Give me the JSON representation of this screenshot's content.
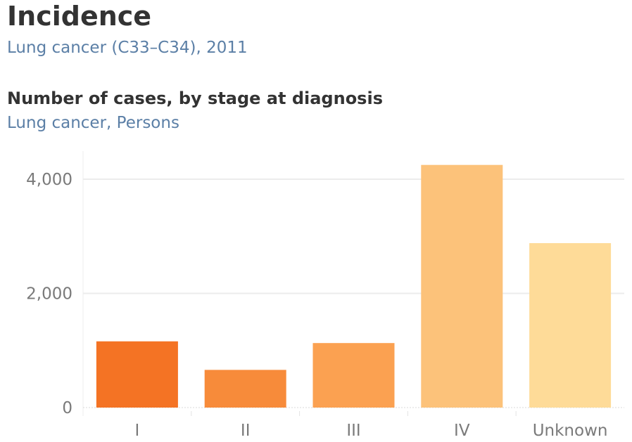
{
  "header": {
    "title": "Incidence",
    "subtitle": "Lung cancer (C33–C34), 2011"
  },
  "chart_header": {
    "title": "Number of cases, by stage at diagnosis",
    "subtitle": "Lung cancer, Persons"
  },
  "chart_data": {
    "type": "bar",
    "title": "Number of cases, by stage at diagnosis",
    "subtitle": "Lung cancer, Persons",
    "categories": [
      "I",
      "II",
      "III",
      "IV",
      "Unknown"
    ],
    "values": [
      1160,
      660,
      1130,
      4250,
      2880
    ],
    "colors": [
      "#f47324",
      "#f78b3a",
      "#fba151",
      "#fcc27a",
      "#fedb98"
    ],
    "yticks": [
      0,
      2000,
      4000
    ],
    "ytick_labels": [
      "0",
      "2,000",
      "4,000"
    ],
    "ylim": [
      0,
      4500
    ],
    "grid": true
  }
}
